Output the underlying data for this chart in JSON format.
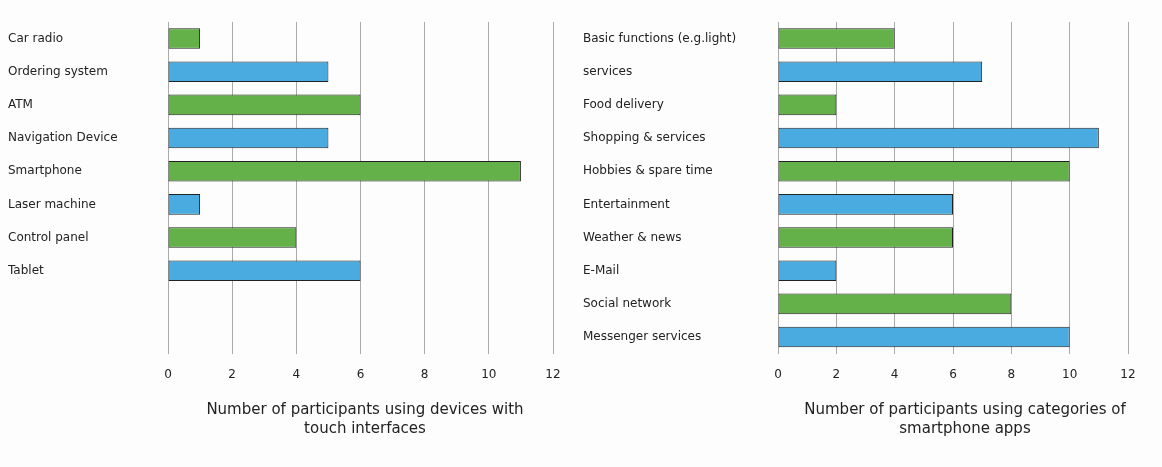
{
  "chart_data": [
    {
      "type": "bar",
      "orientation": "horizontal",
      "xlabel": "Number of participants using devices with touch interfaces",
      "categories": [
        "Car radio",
        "Ordering system",
        "ATM",
        "Navigation Device",
        "Smartphone",
        "Laser machine",
        "Control panel",
        "Tablet",
        null,
        null
      ],
      "values": [
        1,
        5,
        6,
        5,
        11,
        1,
        4,
        6,
        null,
        null
      ],
      "colors": [
        "#63b148",
        "#4aabe0",
        "#63b148",
        "#4aabe0",
        "#63b148",
        "#4aabe0",
        "#63b148",
        "#4aabe0",
        "#63b148",
        "#4aabe0"
      ],
      "xlim": [
        0,
        12
      ],
      "xticks": [
        0,
        2,
        4,
        6,
        8,
        10,
        12
      ],
      "grid": "x"
    },
    {
      "type": "bar",
      "orientation": "horizontal",
      "xlabel": "Number of participants using categories of smartphone apps",
      "categories": [
        "Basic functions (e.g.light)",
        "services",
        "Food delivery",
        "Shopping & services",
        "Hobbies & spare time",
        "Entertainment",
        "Weather & news",
        "E-Mail",
        "Social network",
        "Messenger services"
      ],
      "values": [
        4,
        7,
        2,
        11,
        10,
        6,
        6,
        2,
        8,
        10
      ],
      "colors": [
        "#63b148",
        "#4aabe0",
        "#63b148",
        "#4aabe0",
        "#63b148",
        "#4aabe0",
        "#63b148",
        "#4aabe0",
        "#63b148",
        "#4aabe0"
      ],
      "xlim": [
        0,
        12
      ],
      "xticks": [
        0,
        2,
        4,
        6,
        8,
        10,
        12
      ],
      "grid": "x"
    }
  ]
}
